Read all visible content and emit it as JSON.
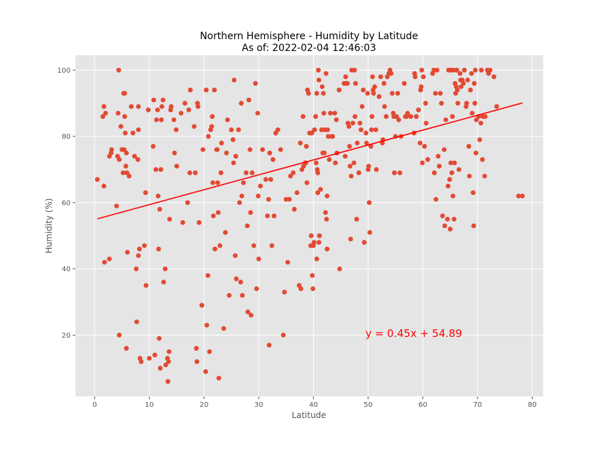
{
  "chart_data": {
    "type": "scatter",
    "title": "Northern Hemisphere - Humidity by Latitude",
    "subtitle": "As of: 2022-02-04 12:46:03",
    "xlabel": "Latitude",
    "ylabel": "Humidity (%)",
    "xlim": [
      -3.5,
      82
    ],
    "ylim": [
      1.5,
      104.5
    ],
    "xticks": [
      0,
      10,
      20,
      30,
      40,
      50,
      60,
      70,
      80
    ],
    "yticks": [
      20,
      40,
      60,
      80,
      100
    ],
    "grid": true,
    "point_color": "#e24a33",
    "line_color": "#ff0000",
    "background_color": "#e5e5e5",
    "regression": {
      "slope": 0.45,
      "intercept": 54.89,
      "x_range": [
        0.5,
        78.2
      ],
      "equation": "y = 0.45x + 54.89",
      "label_at": [
        49.5,
        20.5
      ]
    },
    "points": [
      [
        0.5,
        67
      ],
      [
        1.5,
        86
      ],
      [
        1.7,
        65
      ],
      [
        1.7,
        89
      ],
      [
        2.0,
        87
      ],
      [
        1.8,
        42
      ],
      [
        2.7,
        43
      ],
      [
        2.7,
        74
      ],
      [
        3.0,
        75
      ],
      [
        3.1,
        76
      ],
      [
        4.0,
        59
      ],
      [
        4.2,
        74
      ],
      [
        4.3,
        87
      ],
      [
        4.4,
        100
      ],
      [
        4.5,
        73
      ],
      [
        4.5,
        20
      ],
      [
        4.8,
        83
      ],
      [
        5.0,
        76
      ],
      [
        5.2,
        69
      ],
      [
        5.3,
        93
      ],
      [
        5.4,
        76
      ],
      [
        5.5,
        93
      ],
      [
        5.5,
        86
      ],
      [
        5.6,
        81
      ],
      [
        5.7,
        71
      ],
      [
        5.8,
        75
      ],
      [
        5.9,
        69
      ],
      [
        5.8,
        16
      ],
      [
        6.0,
        45
      ],
      [
        6.3,
        68
      ],
      [
        6.7,
        89
      ],
      [
        7.0,
        81
      ],
      [
        7.3,
        74
      ],
      [
        7.6,
        40
      ],
      [
        7.7,
        24
      ],
      [
        7.9,
        73
      ],
      [
        8.0,
        89
      ],
      [
        8.0,
        82
      ],
      [
        8.0,
        44
      ],
      [
        8.2,
        46
      ],
      [
        8.3,
        13
      ],
      [
        8.5,
        12
      ],
      [
        9.1,
        47
      ],
      [
        9.3,
        63
      ],
      [
        9.4,
        35
      ],
      [
        9.8,
        88
      ],
      [
        10.0,
        13
      ],
      [
        10.7,
        77
      ],
      [
        10.8,
        91
      ],
      [
        11.0,
        14
      ],
      [
        11.2,
        70
      ],
      [
        11.3,
        85
      ],
      [
        11.5,
        88
      ],
      [
        11.6,
        62
      ],
      [
        11.7,
        46
      ],
      [
        11.8,
        19
      ],
      [
        11.9,
        58
      ],
      [
        12.0,
        10
      ],
      [
        12.1,
        70
      ],
      [
        12.2,
        85
      ],
      [
        12.3,
        89
      ],
      [
        12.5,
        91
      ],
      [
        12.6,
        36
      ],
      [
        12.9,
        40
      ],
      [
        13.0,
        11
      ],
      [
        13.3,
        13
      ],
      [
        13.4,
        6
      ],
      [
        13.5,
        12
      ],
      [
        13.6,
        15
      ],
      [
        13.7,
        55
      ],
      [
        13.9,
        88
      ],
      [
        14.0,
        89
      ],
      [
        14.5,
        85
      ],
      [
        14.6,
        75
      ],
      [
        14.9,
        82
      ],
      [
        15.0,
        71
      ],
      [
        15.8,
        87
      ],
      [
        16.1,
        54
      ],
      [
        16.5,
        90
      ],
      [
        17.0,
        60
      ],
      [
        17.2,
        88
      ],
      [
        17.4,
        69
      ],
      [
        17.5,
        94
      ],
      [
        18.2,
        83
      ],
      [
        18.4,
        69
      ],
      [
        18.6,
        16
      ],
      [
        18.7,
        12
      ],
      [
        18.8,
        90
      ],
      [
        18.9,
        89
      ],
      [
        19.1,
        54
      ],
      [
        19.6,
        29
      ],
      [
        19.8,
        76
      ],
      [
        20.3,
        9
      ],
      [
        20.4,
        94
      ],
      [
        20.5,
        23
      ],
      [
        20.7,
        38
      ],
      [
        20.8,
        80
      ],
      [
        21.0,
        15
      ],
      [
        21.2,
        82
      ],
      [
        21.4,
        83
      ],
      [
        21.5,
        86
      ],
      [
        21.6,
        66
      ],
      [
        21.7,
        56
      ],
      [
        21.9,
        94
      ],
      [
        22.0,
        46
      ],
      [
        22.3,
        76
      ],
      [
        22.4,
        76
      ],
      [
        22.5,
        66
      ],
      [
        22.6,
        57
      ],
      [
        22.7,
        7
      ],
      [
        22.9,
        47
      ],
      [
        23.1,
        69
      ],
      [
        23.2,
        78
      ],
      [
        23.6,
        22
      ],
      [
        23.9,
        51
      ],
      [
        24.1,
        75
      ],
      [
        24.3,
        85
      ],
      [
        24.6,
        32
      ],
      [
        25.0,
        82
      ],
      [
        25.3,
        79
      ],
      [
        25.4,
        72
      ],
      [
        25.5,
        97
      ],
      [
        25.7,
        44
      ],
      [
        25.8,
        74
      ],
      [
        25.9,
        37
      ],
      [
        26.3,
        82
      ],
      [
        26.5,
        60
      ],
      [
        26.7,
        36
      ],
      [
        26.8,
        90
      ],
      [
        26.9,
        62
      ],
      [
        27.0,
        32
      ],
      [
        27.2,
        66
      ],
      [
        27.7,
        69
      ],
      [
        27.9,
        53
      ],
      [
        28.0,
        27
      ],
      [
        28.2,
        91
      ],
      [
        28.4,
        76
      ],
      [
        28.5,
        57
      ],
      [
        28.6,
        26
      ],
      [
        28.8,
        69
      ],
      [
        29.1,
        47
      ],
      [
        29.4,
        96
      ],
      [
        29.6,
        34
      ],
      [
        29.8,
        87
      ],
      [
        29.9,
        62
      ],
      [
        30.0,
        43
      ],
      [
        30.3,
        65
      ],
      [
        30.7,
        76
      ],
      [
        31.3,
        67
      ],
      [
        31.6,
        56
      ],
      [
        31.8,
        61
      ],
      [
        31.9,
        17
      ],
      [
        32.0,
        75
      ],
      [
        32.2,
        67
      ],
      [
        32.4,
        47
      ],
      [
        32.6,
        73
      ],
      [
        32.8,
        56
      ],
      [
        33.1,
        81
      ],
      [
        33.5,
        82
      ],
      [
        34.0,
        76
      ],
      [
        34.5,
        20
      ],
      [
        34.7,
        33
      ],
      [
        35.0,
        61
      ],
      [
        35.3,
        42
      ],
      [
        35.6,
        61
      ],
      [
        35.8,
        68
      ],
      [
        36.3,
        69
      ],
      [
        36.5,
        58
      ],
      [
        37.0,
        63
      ],
      [
        37.4,
        35
      ],
      [
        37.6,
        78
      ],
      [
        37.7,
        34
      ],
      [
        37.9,
        70
      ],
      [
        38.1,
        86
      ],
      [
        38.2,
        71
      ],
      [
        38.5,
        72
      ],
      [
        38.6,
        72
      ],
      [
        38.7,
        77
      ],
      [
        38.8,
        66
      ],
      [
        38.9,
        94
      ],
      [
        39.1,
        93
      ],
      [
        39.3,
        81
      ],
      [
        39.5,
        47
      ],
      [
        39.6,
        50
      ],
      [
        39.7,
        81
      ],
      [
        39.8,
        38
      ],
      [
        39.9,
        34
      ],
      [
        40.0,
        47
      ],
      [
        40.1,
        48
      ],
      [
        40.2,
        82
      ],
      [
        40.4,
        86
      ],
      [
        40.5,
        72
      ],
      [
        40.6,
        93
      ],
      [
        40.7,
        70
      ],
      [
        40.8,
        69
      ],
      [
        40.8,
        63
      ],
      [
        40.9,
        100
      ],
      [
        40.6,
        43
      ],
      [
        41.0,
        97
      ],
      [
        41.0,
        48
      ],
      [
        41.1,
        50
      ],
      [
        41.3,
        64
      ],
      [
        41.5,
        82
      ],
      [
        41.6,
        95
      ],
      [
        41.7,
        75
      ],
      [
        41.8,
        93
      ],
      [
        41.9,
        87
      ],
      [
        42.0,
        75
      ],
      [
        42.1,
        82
      ],
      [
        42.2,
        57
      ],
      [
        42.3,
        99
      ],
      [
        42.4,
        55
      ],
      [
        42.5,
        62
      ],
      [
        42.5,
        46
      ],
      [
        42.6,
        82
      ],
      [
        42.7,
        80
      ],
      [
        42.9,
        73
      ],
      [
        43.1,
        87
      ],
      [
        43.3,
        80
      ],
      [
        43.5,
        80
      ],
      [
        43.9,
        87
      ],
      [
        44.0,
        72
      ],
      [
        44.2,
        85
      ],
      [
        44.3,
        75
      ],
      [
        44.7,
        94
      ],
      [
        44.8,
        40
      ],
      [
        45.6,
        96
      ],
      [
        45.8,
        74
      ],
      [
        45.9,
        98
      ],
      [
        46.0,
        96
      ],
      [
        46.2,
        96
      ],
      [
        46.3,
        84
      ],
      [
        46.5,
        83
      ],
      [
        46.6,
        77
      ],
      [
        46.7,
        71
      ],
      [
        46.8,
        49
      ],
      [
        46.9,
        68
      ],
      [
        47.0,
        100
      ],
      [
        47.2,
        84
      ],
      [
        47.4,
        72
      ],
      [
        47.5,
        100
      ],
      [
        47.6,
        86
      ],
      [
        47.7,
        96
      ],
      [
        47.9,
        55
      ],
      [
        48.0,
        78
      ],
      [
        48.3,
        69
      ],
      [
        48.5,
        84
      ],
      [
        48.7,
        82
      ],
      [
        48.9,
        89
      ],
      [
        49.1,
        94
      ],
      [
        49.3,
        48
      ],
      [
        49.6,
        81
      ],
      [
        49.7,
        78
      ],
      [
        49.9,
        93
      ],
      [
        50.0,
        70
      ],
      [
        50.1,
        71
      ],
      [
        50.2,
        60
      ],
      [
        50.3,
        51
      ],
      [
        50.5,
        77
      ],
      [
        50.6,
        82
      ],
      [
        50.7,
        86
      ],
      [
        50.8,
        98
      ],
      [
        50.9,
        94
      ],
      [
        51.0,
        93
      ],
      [
        51.2,
        95
      ],
      [
        51.4,
        82
      ],
      [
        51.5,
        70
      ],
      [
        52.0,
        92
      ],
      [
        52.3,
        98
      ],
      [
        52.6,
        78
      ],
      [
        52.7,
        79
      ],
      [
        52.9,
        96
      ],
      [
        53.0,
        89
      ],
      [
        53.3,
        86
      ],
      [
        53.5,
        98
      ],
      [
        53.8,
        99
      ],
      [
        54.0,
        100
      ],
      [
        54.2,
        99
      ],
      [
        54.4,
        93
      ],
      [
        54.6,
        87
      ],
      [
        54.7,
        86
      ],
      [
        54.8,
        69
      ],
      [
        55.0,
        80
      ],
      [
        55.2,
        86
      ],
      [
        55.4,
        93
      ],
      [
        55.6,
        85
      ],
      [
        55.8,
        69
      ],
      [
        56.0,
        80
      ],
      [
        56.6,
        96
      ],
      [
        56.8,
        86
      ],
      [
        57.0,
        86
      ],
      [
        57.2,
        87
      ],
      [
        57.8,
        86
      ],
      [
        58.4,
        81
      ],
      [
        58.5,
        99
      ],
      [
        58.6,
        98
      ],
      [
        58.8,
        86
      ],
      [
        59.2,
        88
      ],
      [
        59.5,
        78
      ],
      [
        59.6,
        94
      ],
      [
        59.7,
        95
      ],
      [
        59.8,
        100
      ],
      [
        59.9,
        72
      ],
      [
        60.1,
        98
      ],
      [
        60.3,
        77
      ],
      [
        60.5,
        90
      ],
      [
        60.6,
        84
      ],
      [
        60.9,
        73
      ],
      [
        61.8,
        99
      ],
      [
        62.0,
        100
      ],
      [
        62.1,
        69
      ],
      [
        62.3,
        93
      ],
      [
        62.4,
        61
      ],
      [
        62.6,
        100
      ],
      [
        62.8,
        74
      ],
      [
        63.0,
        71
      ],
      [
        63.2,
        93
      ],
      [
        63.4,
        90
      ],
      [
        63.6,
        56
      ],
      [
        63.9,
        76
      ],
      [
        64.0,
        53
      ],
      [
        64.2,
        85
      ],
      [
        64.5,
        55
      ],
      [
        64.6,
        65
      ],
      [
        64.7,
        100
      ],
      [
        64.9,
        67
      ],
      [
        65.0,
        52
      ],
      [
        65.1,
        72
      ],
      [
        65.2,
        100
      ],
      [
        65.3,
        69
      ],
      [
        65.4,
        86
      ],
      [
        65.5,
        62
      ],
      [
        65.6,
        100
      ],
      [
        65.7,
        55
      ],
      [
        65.8,
        72
      ],
      [
        65.9,
        96
      ],
      [
        66.0,
        93
      ],
      [
        66.1,
        95
      ],
      [
        66.2,
        100
      ],
      [
        66.3,
        94
      ],
      [
        66.4,
        90
      ],
      [
        66.6,
        70
      ],
      [
        66.8,
        99
      ],
      [
        66.9,
        97
      ],
      [
        67.0,
        95
      ],
      [
        67.2,
        97
      ],
      [
        67.4,
        96
      ],
      [
        67.6,
        100
      ],
      [
        67.9,
        89
      ],
      [
        68.0,
        90
      ],
      [
        68.2,
        97
      ],
      [
        68.4,
        77
      ],
      [
        68.5,
        68
      ],
      [
        68.7,
        94
      ],
      [
        68.9,
        99
      ],
      [
        69.0,
        87
      ],
      [
        69.2,
        63
      ],
      [
        69.3,
        53
      ],
      [
        69.4,
        96
      ],
      [
        69.5,
        90
      ],
      [
        69.6,
        100
      ],
      [
        69.7,
        75
      ],
      [
        69.8,
        85
      ],
      [
        70.2,
        86
      ],
      [
        70.4,
        79
      ],
      [
        70.6,
        84
      ],
      [
        70.7,
        100
      ],
      [
        70.9,
        73
      ],
      [
        71.0,
        86
      ],
      [
        71.3,
        68
      ],
      [
        71.4,
        86
      ],
      [
        71.8,
        100
      ],
      [
        72.0,
        99
      ],
      [
        72.3,
        100
      ],
      [
        73.0,
        98
      ],
      [
        73.5,
        89
      ],
      [
        77.5,
        62
      ],
      [
        78.2,
        62
      ]
    ]
  }
}
